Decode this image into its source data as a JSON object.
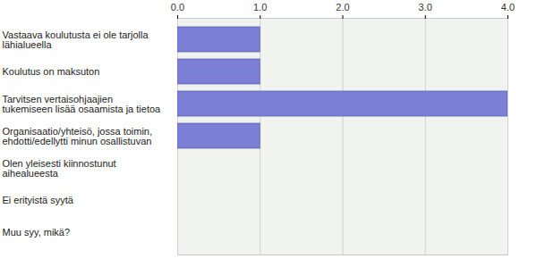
{
  "chart_data": {
    "type": "bar",
    "orientation": "horizontal",
    "categories": [
      "Vastaava koulutusta ei ole tarjolla lähialueella",
      "Koulutus on maksuton",
      "Tarvitsen vertaisohjaajien tukemiseen lisää osaamista ja tietoa",
      "Organisaatio/yhteisö, jossa toimin, ehdotti/edellytti minun osallistuvan",
      "Olen yleisesti kiinnostunut aihealueesta",
      "Ei erityistä syytä",
      "Muu syy, mikä?"
    ],
    "values": [
      1,
      1,
      4,
      1,
      0,
      0,
      0
    ],
    "color": "#7b80d6",
    "xlim": [
      0,
      4
    ],
    "xticks": [
      0,
      1,
      2,
      3,
      4
    ],
    "grid": true
  }
}
